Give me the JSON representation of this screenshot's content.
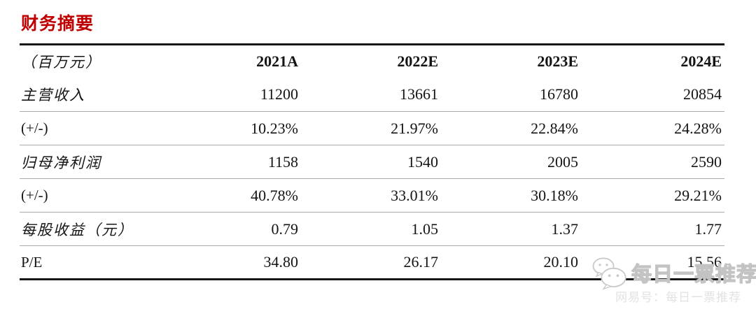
{
  "page": {
    "title": "财务摘要"
  },
  "table": {
    "unit_header": "（百万元）",
    "columns": [
      "2021A",
      "2022E",
      "2023E",
      "2024E"
    ],
    "rows": [
      {
        "label": "主营收入",
        "values": [
          "11200",
          "13661",
          "16780",
          "20854"
        ]
      },
      {
        "label": "(+/-)",
        "values": [
          "10.23%",
          "21.97%",
          "22.84%",
          "24.28%"
        ]
      },
      {
        "label": "归母净利润",
        "values": [
          "1158",
          "1540",
          "2005",
          "2590"
        ]
      },
      {
        "label": "(+/-)",
        "values": [
          "40.78%",
          "33.01%",
          "30.18%",
          "29.21%"
        ]
      },
      {
        "label": "每股收益（元）",
        "values": [
          "0.79",
          "1.05",
          "1.37",
          "1.77"
        ]
      },
      {
        "label": "P/E",
        "values": [
          "34.80",
          "26.17",
          "20.10",
          "15.56"
        ]
      }
    ]
  },
  "watermark": {
    "icon": "wechat-icon",
    "text": "每日一票推荐",
    "subtext": "网易号：每日一票推荐"
  },
  "colors": {
    "title_red": "#c00000",
    "thick_rule": "#161616",
    "thin_rule": "#ababab",
    "watermark_gray": "#c3c3c3"
  }
}
